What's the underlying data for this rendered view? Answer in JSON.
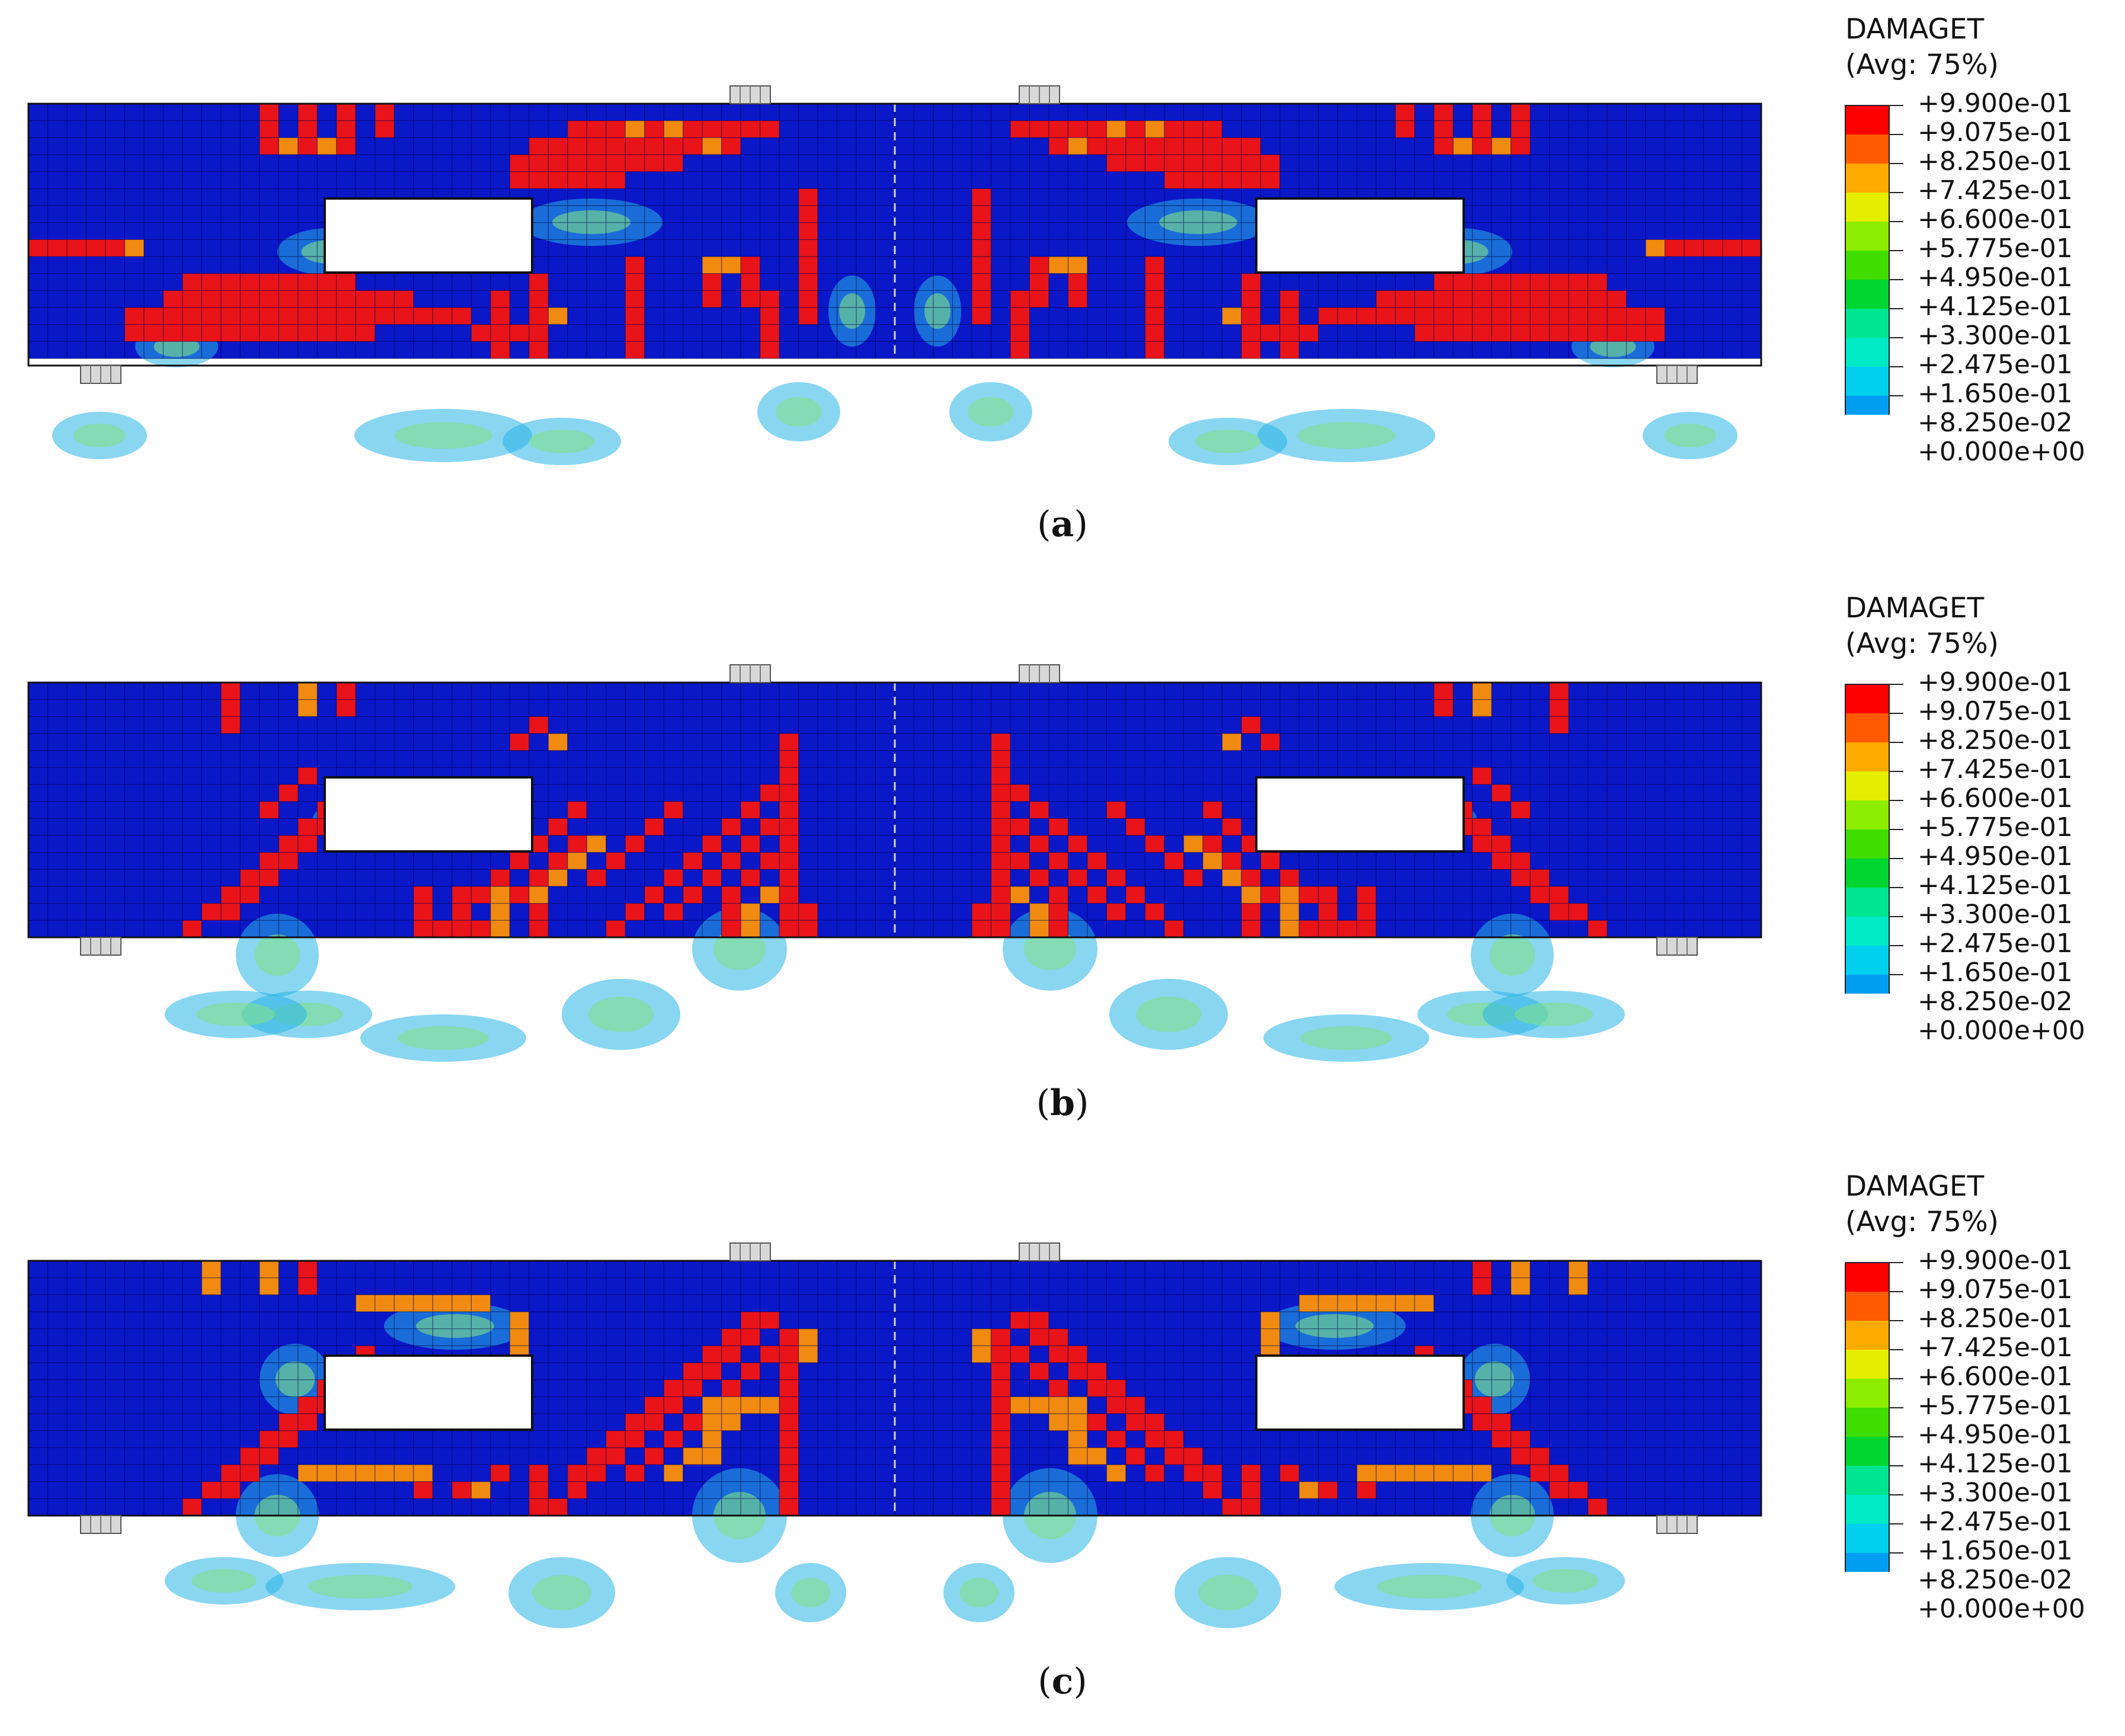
{
  "legend": {
    "title": "DAMAGET",
    "subtitle": "(Avg: 75%)",
    "labels": [
      "+9.900e-01",
      "+9.075e-01",
      "+8.250e-01",
      "+7.425e-01",
      "+6.600e-01",
      "+5.775e-01",
      "+4.950e-01",
      "+4.125e-01",
      "+3.300e-01",
      "+2.475e-01",
      "+1.650e-01",
      "+8.250e-02",
      "+0.000e+00"
    ],
    "colors": [
      "#ff0000",
      "#ff5a00",
      "#ffaa00",
      "#e6ee00",
      "#8ced00",
      "#3fdd00",
      "#00d630",
      "#00e58f",
      "#00eac6",
      "#00cfee",
      "#009ef2",
      "#0060f3",
      "#0000ff"
    ]
  },
  "panels": [
    {
      "id": "a",
      "caption_open": "(",
      "caption_letter": "a",
      "caption_close": ")"
    },
    {
      "id": "b",
      "caption_open": "(",
      "caption_letter": "b",
      "caption_close": ")"
    },
    {
      "id": "c",
      "caption_open": "(",
      "caption_letter": "c",
      "caption_close": ")"
    }
  ],
  "style": {
    "beam_color": "#0a18c8",
    "mesh_line": "#000040",
    "crack_red": "#e8141a",
    "crack_orange": "#f08a10",
    "halo_cyan": "#28b4e6"
  }
}
